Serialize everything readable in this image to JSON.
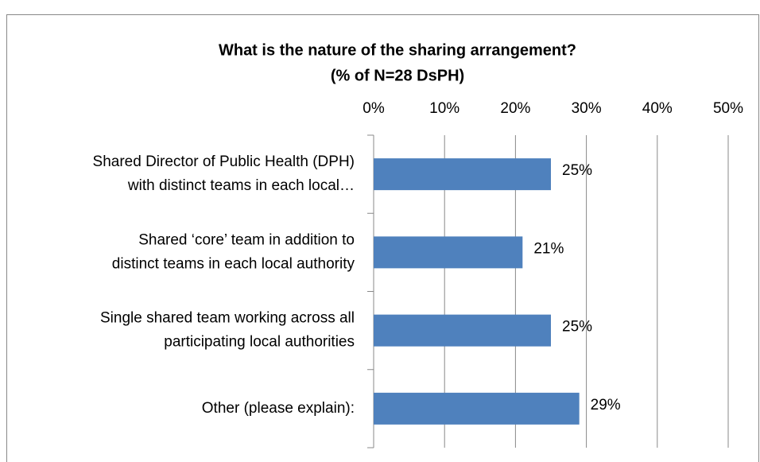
{
  "chart_data": {
    "type": "bar",
    "orientation": "horizontal",
    "title": [
      "What is the nature of the sharing arrangement?",
      "(% of N=28 DsPH)"
    ],
    "categories": [
      "Shared Director of Public Health (DPH)\nwith distinct teams in each local…",
      "Shared ‘core’ team in addition to\ndistinct teams in each local authority",
      "Single shared team working across all\nparticipating local authorities",
      "Other (please explain):"
    ],
    "values": [
      25,
      21,
      25,
      29
    ],
    "value_labels": [
      "25%",
      "21%",
      "25%",
      "29%"
    ],
    "color": "#4f81bd",
    "xlim": [
      0,
      50
    ],
    "xticks": [
      {
        "value": 0,
        "label": "0%"
      },
      {
        "value": 10,
        "label": "10%"
      },
      {
        "value": 20,
        "label": "20%"
      },
      {
        "value": 30,
        "label": "30%"
      },
      {
        "value": 40,
        "label": "40%"
      },
      {
        "value": 50,
        "label": "50%"
      }
    ],
    "grid": true
  }
}
